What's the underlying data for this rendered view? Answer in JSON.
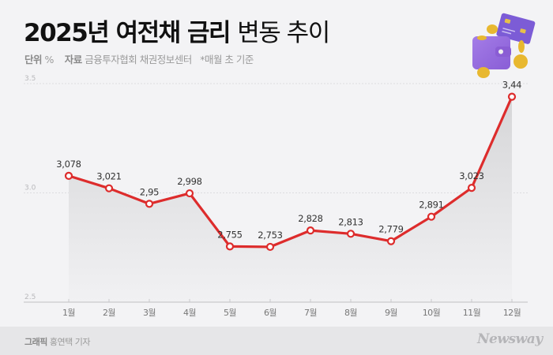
{
  "header": {
    "title_bold": "2025년 여전채 금리",
    "title_light": "변동 추이",
    "unit_label": "단위",
    "unit_value": "%",
    "source_label": "자료",
    "source_value": "금융투자협회 채권정보센터",
    "note": "*매월 초 기준"
  },
  "footer": {
    "credit_label": "그래픽",
    "credit_name": "홍연택 기자",
    "logo": "Newsway"
  },
  "illustration": "wallet-with-card-and-coins-icon",
  "colors": {
    "line": "#dd2c2c",
    "area": "#dcdcde",
    "background": "#f3f3f5",
    "footer": "#e6e6e8"
  },
  "chart_data": {
    "type": "line",
    "title": "2025년 여전채 금리 변동 추이",
    "xlabel": "",
    "ylabel": "단위 %",
    "categories": [
      "1월",
      "2월",
      "3월",
      "4월",
      "5월",
      "6월",
      "7월",
      "8월",
      "9월",
      "10월",
      "11월",
      "12월"
    ],
    "values": [
      3.078,
      3.021,
      2.95,
      2.998,
      2.755,
      2.753,
      2.828,
      2.813,
      2.779,
      2.891,
      3.023,
      3.44
    ],
    "data_labels": [
      "3,078",
      "3,021",
      "2,95",
      "2,998",
      "2,755",
      "2,753",
      "2,828",
      "2,813",
      "2,779",
      "2,891",
      "3,023",
      "3,44"
    ],
    "yticks": [
      "2.5",
      "3.0",
      "3.5"
    ],
    "ylim": [
      2.5,
      3.5
    ],
    "grid": true,
    "area_fill": true,
    "legend": null
  }
}
